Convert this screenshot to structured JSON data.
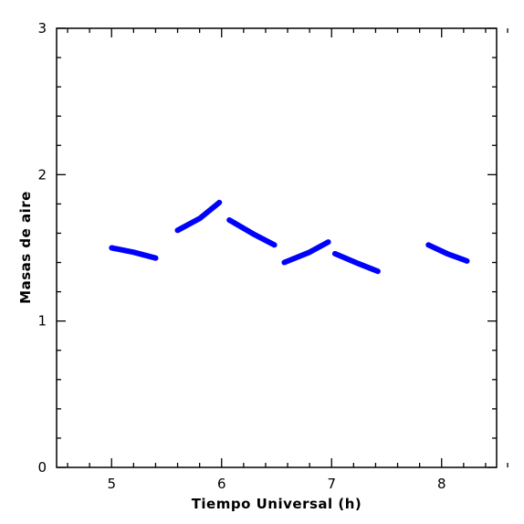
{
  "chart_data": {
    "type": "line",
    "title": "",
    "xlabel": "Tiempo Universal (h)",
    "ylabel": "Masas de aire",
    "xlim": [
      4.5,
      8.5
    ],
    "ylim": [
      0,
      3
    ],
    "x_ticks": [
      "5",
      "6",
      "7",
      "8"
    ],
    "y_ticks": [
      "0",
      "1",
      "2",
      "3"
    ],
    "grid": false,
    "legend": "none",
    "series_color": "#0000ff",
    "series": [
      {
        "x": [
          5.0,
          5.2,
          5.4
        ],
        "y": [
          1.5,
          1.47,
          1.43
        ]
      },
      {
        "x": [
          5.6,
          5.8,
          5.98
        ],
        "y": [
          1.62,
          1.7,
          1.81
        ]
      },
      {
        "x": [
          6.07,
          6.3,
          6.48
        ],
        "y": [
          1.69,
          1.59,
          1.52
        ]
      },
      {
        "x": [
          6.57,
          6.8,
          6.97
        ],
        "y": [
          1.4,
          1.47,
          1.54
        ]
      },
      {
        "x": [
          7.03,
          7.25,
          7.42
        ],
        "y": [
          1.46,
          1.39,
          1.34
        ]
      },
      {
        "x": [
          7.88,
          8.05,
          8.23
        ],
        "y": [
          1.52,
          1.46,
          1.41
        ]
      }
    ]
  }
}
